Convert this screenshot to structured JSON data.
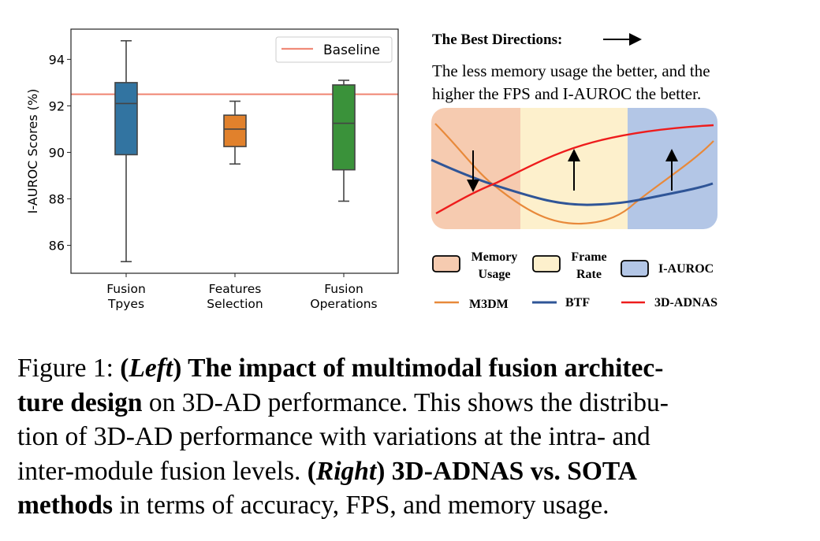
{
  "chart_data": {
    "type": "box",
    "ylabel": "I-AUROC Scores (%)",
    "xlabel": "",
    "ylim": [
      84.8,
      95.3
    ],
    "yticks": [
      86,
      88,
      90,
      92,
      94
    ],
    "grid": false,
    "legend_position": "top-right",
    "categories": [
      "Fusion\nTpyes",
      "Features\nSelection",
      "Fusion\nOperations"
    ],
    "category_lines": [
      [
        "Fusion",
        "Tpyes"
      ],
      [
        "Features",
        "Selection"
      ],
      [
        "Fusion",
        "Operations"
      ]
    ],
    "boxes": [
      {
        "whisker_low": 85.3,
        "q1": 89.9,
        "median": 92.1,
        "q3": 93.0,
        "whisker_high": 94.8,
        "color": "#3274a1"
      },
      {
        "whisker_low": 89.5,
        "q1": 90.25,
        "median": 91.0,
        "q3": 91.6,
        "whisker_high": 92.2,
        "color": "#e1812c"
      },
      {
        "whisker_low": 87.9,
        "q1": 89.25,
        "median": 91.25,
        "q3": 92.9,
        "whisker_high": 93.1,
        "color": "#3a923a"
      }
    ],
    "reference_line": {
      "name": "Baseline",
      "value": 92.5,
      "color": "#f08a78"
    }
  },
  "diagram": {
    "title": "The Best Directions:",
    "description_lines": [
      "The less memory usage the better, and the",
      "higher the FPS and I-AUROC the better."
    ],
    "regions": [
      {
        "label_lines": [
          "Memory",
          "Usage"
        ],
        "color": "#f6cbb0",
        "direction": "down"
      },
      {
        "label_lines": [
          "Frame",
          "Rate"
        ],
        "color": "#fdf0cc",
        "direction": "up"
      },
      {
        "label_lines": [
          "I-AUROC"
        ],
        "color": "#b3c6e6",
        "direction": "up"
      }
    ],
    "methods": [
      {
        "name": "M3DM",
        "color": "#e8893a"
      },
      {
        "name": "BTF",
        "color": "#2f5597"
      },
      {
        "name": "3D-ADNAS",
        "color": "#ee1c1c"
      }
    ]
  },
  "caption": {
    "lines": [
      [
        {
          "t": "Figure 1: ",
          "s": ""
        },
        {
          "t": "(",
          "s": "b"
        },
        {
          "t": "Left",
          "s": "b i"
        },
        {
          "t": ")",
          "s": "b"
        },
        {
          "t": " The impact of multimodal fusion architec-",
          "s": "b"
        }
      ],
      [
        {
          "t": "ture design",
          "s": "b"
        },
        {
          "t": " on 3D-AD performance. This shows the distribu-",
          "s": ""
        }
      ],
      [
        {
          "t": "tion of 3D-AD performance with variations at the intra- and",
          "s": ""
        }
      ],
      [
        {
          "t": "inter-module fusion levels. ",
          "s": ""
        },
        {
          "t": "(",
          "s": "b"
        },
        {
          "t": "Right",
          "s": "b i"
        },
        {
          "t": ")",
          "s": "b"
        },
        {
          "t": " 3D-ADNAS vs. SOTA",
          "s": "b"
        }
      ],
      [
        {
          "t": "methods",
          "s": "b"
        },
        {
          "t": " in terms of accuracy, FPS, and memory usage.",
          "s": ""
        }
      ]
    ]
  }
}
